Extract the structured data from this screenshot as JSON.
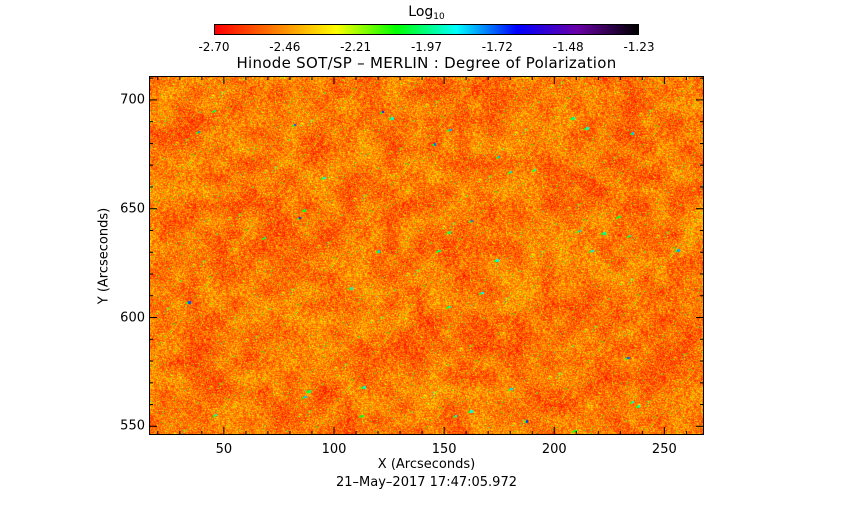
{
  "colorbar": {
    "title": "Log",
    "title_sub": "10",
    "ticks": [
      "-2.70",
      "-2.46",
      "-2.21",
      "-1.97",
      "-1.72",
      "-1.48",
      "-1.23"
    ],
    "range": [
      -2.7,
      -1.23
    ],
    "colormap": [
      "#ff0000",
      "#ff7f00",
      "#ffff00",
      "#00ff00",
      "#00ffff",
      "#0000ff",
      "#6a00a8",
      "#000000"
    ]
  },
  "chart_data": {
    "type": "heatmap",
    "title": "Hinode SOT/SP – MERLIN : Degree of Polarization",
    "xlabel": "X (Arcseconds)",
    "ylabel": "Y (Arcseconds)",
    "xlim": [
      16,
      268
    ],
    "ylim": [
      546,
      711
    ],
    "x_ticks": [
      50,
      100,
      150,
      200,
      250
    ],
    "y_ticks": [
      550,
      600,
      650,
      700
    ],
    "value_range_log10": [
      -2.7,
      -1.23
    ],
    "dominant_range_log10": [
      -2.7,
      -2.4
    ],
    "description_values": "mostly red/orange speckle with sparse yellow-green and isolated cyan/blue points"
  },
  "footer": {
    "timestamp": "21–May–2017 17:47:05.972"
  }
}
